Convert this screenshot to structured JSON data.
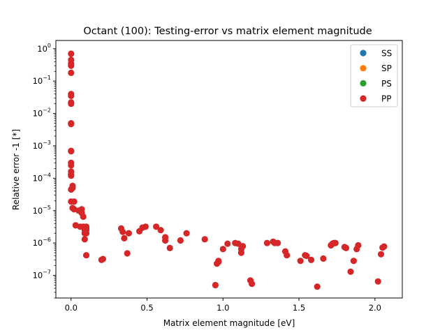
{
  "chart_data": {
    "type": "scatter",
    "title": "Octant (100): Testing-error vs matrix element magnitude",
    "xlabel": "Matrix element magnitude [eV]",
    "ylabel": "Relative error -1 [*]",
    "xscale": "linear",
    "yscale": "log",
    "xlim": [
      -0.1,
      2.18
    ],
    "ylim": [
      2e-08,
      1.8
    ],
    "xticks": [
      0.0,
      0.5,
      1.0,
      1.5,
      2.0
    ],
    "xtick_labels": [
      "0.0",
      "0.5",
      "1.0",
      "1.5",
      "2.0"
    ],
    "yticks": [
      1e-07,
      1e-06,
      1e-05,
      0.0001,
      0.001,
      0.01,
      0.1,
      1
    ],
    "ytick_labels": [
      {
        "base": "10",
        "exp": "−7"
      },
      {
        "base": "10",
        "exp": "−6"
      },
      {
        "base": "10",
        "exp": "−5"
      },
      {
        "base": "10",
        "exp": "−4"
      },
      {
        "base": "10",
        "exp": "−3"
      },
      {
        "base": "10",
        "exp": "−2"
      },
      {
        "base": "10",
        "exp": "−1"
      },
      {
        "base": "10",
        "exp": "0"
      }
    ],
    "grid": false,
    "legend_position": "top-right",
    "series": [
      {
        "name": "SS",
        "color": "#1f77b4",
        "x": [],
        "y": []
      },
      {
        "name": "SP",
        "color": "#ff7f0e",
        "x": [],
        "y": []
      },
      {
        "name": "PS",
        "color": "#2ca02c",
        "x": [],
        "y": []
      },
      {
        "name": "PP",
        "color": "#d62728",
        "x": [
          0.0,
          0.0,
          0.0,
          0.0,
          0.0,
          0.0,
          0.0,
          0.0,
          0.0,
          0.0,
          0.0,
          0.0,
          0.0,
          0.0,
          0.0,
          0.0,
          0.0,
          0.0,
          0.01,
          0.0,
          0.01,
          0.0,
          0.02,
          0.01,
          0.02,
          0.05,
          0.03,
          0.06,
          0.07,
          0.07,
          0.08,
          0.08,
          0.09,
          0.1,
          0.1,
          0.09,
          0.09,
          0.1,
          0.1,
          0.1,
          0.2,
          0.21,
          0.33,
          0.34,
          0.35,
          0.37,
          0.38,
          0.45,
          0.47,
          0.49,
          0.56,
          0.59,
          0.62,
          0.62,
          0.65,
          0.72,
          0.76,
          0.88,
          0.97,
          0.96,
          0.97,
          1.0,
          1.03,
          1.08,
          1.1,
          1.12,
          1.12,
          1.13,
          1.18,
          1.19,
          1.29,
          1.33,
          1.34,
          1.36,
          1.41,
          1.42,
          1.51,
          1.54,
          1.55,
          1.58,
          1.62,
          1.66,
          1.71,
          1.72,
          1.73,
          1.74,
          1.8,
          1.81,
          1.84,
          1.86,
          1.88,
          1.89,
          2.02,
          2.04,
          2.05,
          2.06,
          0.95
        ],
        "y": [
          0.7,
          0.45,
          0.35,
          0.3,
          0.18,
          0.04,
          0.035,
          0.022,
          0.02,
          0.005,
          0.0047,
          0.0007,
          0.00068,
          0.0003,
          0.00025,
          0.00016,
          0.00013,
          0.00012,
          5.8e-05,
          4.5e-05,
          5e-05,
          1.9e-05,
          1.9e-05,
          1.2e-05,
          1.1e-05,
          1e-05,
          3.5e-06,
          3.2e-06,
          1.1e-05,
          8.5e-06,
          6.5e-06,
          3.2e-06,
          2.5e-06,
          2e-06,
          2.8e-06,
          2e-06,
          1.3e-06,
          3.2e-06,
          2.5e-06,
          4.2e-07,
          3e-07,
          3.2e-07,
          2.8e-06,
          2.2e-06,
          1.4e-06,
          4.8e-07,
          2e-06,
          2.3e-06,
          3e-06,
          3.2e-06,
          3.2e-06,
          2.5e-06,
          1.5e-06,
          1.2e-06,
          7e-07,
          1.2e-06,
          2e-06,
          1.3e-06,
          2.8e-07,
          2.3e-07,
          2.6e-07,
          6.5e-07,
          9.5e-07,
          1e-06,
          9.5e-07,
          6.5e-07,
          5e-07,
          8e-07,
          7e-08,
          5.5e-08,
          1e-06,
          1.1e-06,
          1e-06,
          1e-06,
          5.5e-07,
          4.2e-07,
          2.8e-07,
          4.2e-07,
          4e-07,
          3e-07,
          4.5e-08,
          3.3e-07,
          8.5e-07,
          9.5e-07,
          1e-06,
          1e-06,
          7.5e-07,
          7e-07,
          1.3e-07,
          2.8e-07,
          6.5e-07,
          8.5e-07,
          6.5e-08,
          4.5e-07,
          7.2e-07,
          7.8e-07,
          5e-08
        ]
      }
    ]
  }
}
